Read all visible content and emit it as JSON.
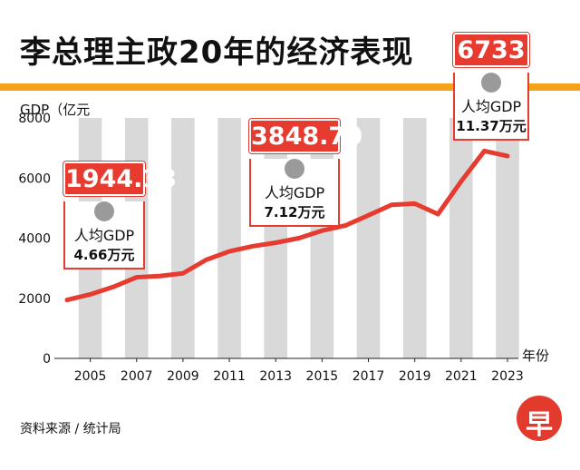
{
  "header": {
    "title": "李总理主政20年的经济表现"
  },
  "axis": {
    "y_label": "GDP（亿元",
    "x_label": "年份"
  },
  "source": "资料来源 / 统计局",
  "logo": {
    "char": "早"
  },
  "colors": {
    "line": "#e63b2e",
    "band": "#d9d9d9",
    "accent": "#f2a31a"
  },
  "callouts": [
    {
      "value": "1944.33",
      "label": "人均GDP",
      "per_capita": "4.66万元"
    },
    {
      "value": "3848.70",
      "label": "人均GDP",
      "per_capita": "7.12万元"
    },
    {
      "value": "6733",
      "label": "人均GDP",
      "per_capita": "11.37万元"
    }
  ],
  "chart_data": {
    "type": "line",
    "title": "李总理主政20年的经济表现",
    "ylabel": "GDP（亿元",
    "xlabel": "年份",
    "ylim": [
      0,
      8000
    ],
    "yticks": [
      0,
      2000,
      4000,
      6000,
      8000
    ],
    "xticks": [
      2005,
      2007,
      2009,
      2011,
      2013,
      2015,
      2017,
      2019,
      2021,
      2023
    ],
    "x": [
      2004,
      2005,
      2006,
      2007,
      2008,
      2009,
      2010,
      2011,
      2012,
      2013,
      2014,
      2015,
      2016,
      2017,
      2018,
      2019,
      2020,
      2021,
      2022,
      2023
    ],
    "series": [
      {
        "values": [
          1944,
          2130,
          2380,
          2700,
          2740,
          2830,
          3280,
          3560,
          3730,
          3849,
          4000,
          4250,
          4420,
          4760,
          5110,
          5150,
          4800,
          5890,
          6900,
          6733
        ]
      }
    ],
    "grid": "alternating vertical bands"
  }
}
